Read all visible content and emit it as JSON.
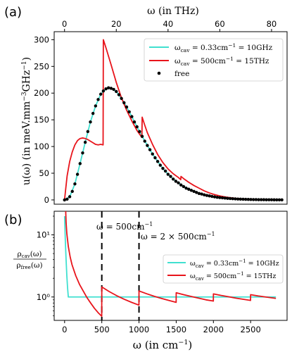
{
  "chart_data": [
    {
      "type": "line",
      "panel_label": "(a)",
      "xlabel": "ω (in THz)",
      "ylabel": "u(ω) (in meV.mm⁻³GHz⁻¹)",
      "xlim": [
        -4,
        86
      ],
      "ylim": [
        -8,
        315
      ],
      "x_ticks": [
        0,
        20,
        40,
        60,
        80
      ],
      "x_tick_labels": [
        "0",
        "20",
        "40",
        "60",
        "80"
      ],
      "y_ticks": [
        0,
        50,
        100,
        150,
        200,
        250,
        300
      ],
      "y_tick_labels": [
        "0",
        "50",
        "100",
        "150",
        "200",
        "250",
        "300"
      ],
      "x_axis_position": "top",
      "legend_position": "top-right",
      "series": [
        {
          "name": "ω_cav = 0.33cm⁻¹ = 10GHz",
          "color": "#40e0d0",
          "style": "line",
          "x": [
            0,
            2,
            4,
            6,
            8,
            10,
            12,
            14,
            16,
            18,
            20,
            22,
            24,
            26,
            28,
            30,
            32,
            34,
            36,
            38,
            40,
            42,
            44,
            46,
            48,
            50,
            52,
            54,
            56,
            58,
            60,
            62,
            64,
            66,
            68,
            70,
            72,
            74,
            76,
            78,
            80,
            82,
            84
          ],
          "y": [
            0,
            6,
            30,
            68,
            108,
            146,
            176,
            198,
            208,
            209,
            203,
            190,
            174,
            156,
            137,
            119,
            102,
            86,
            72,
            59,
            48,
            39,
            32,
            25,
            20,
            16,
            12,
            9.5,
            7.5,
            5.7,
            4.4,
            3.4,
            2.6,
            2.0,
            1.5,
            1.1,
            0.8,
            0.6,
            0.5,
            0.35,
            0.26,
            0.2,
            0.15
          ]
        },
        {
          "name": "ω_cav = 500cm⁻¹ = 15THz",
          "color": "#e8141b",
          "style": "line",
          "x": [
            0,
            1,
            2,
            3,
            4,
            5,
            6,
            7,
            8,
            9,
            10,
            11,
            12,
            13,
            14,
            14.9,
            15,
            16,
            18,
            20,
            22,
            24,
            26,
            28,
            29.9,
            30,
            31,
            32,
            34,
            36,
            38,
            40,
            42,
            44,
            44.9,
            45,
            46,
            48,
            50,
            52,
            54,
            56,
            58,
            60,
            62,
            64,
            66,
            68,
            70,
            72,
            74,
            76,
            78,
            80,
            82,
            84
          ],
          "y": [
            0,
            45,
            72,
            90,
            103,
            111,
            115,
            116,
            115,
            113,
            110,
            107,
            104,
            103,
            104,
            103,
            300,
            285,
            253,
            220,
            191,
            168,
            148,
            130,
            117,
            155,
            140,
            126,
            104,
            85,
            70,
            58,
            49,
            42,
            38,
            44,
            40,
            33,
            27,
            22,
            17,
            13,
            10,
            7.5,
            5.6,
            4.1,
            3.0,
            2.2,
            1.6,
            1.2,
            0.85,
            0.6,
            0.45,
            0.32,
            0.23,
            0.17
          ]
        },
        {
          "name": "free",
          "color": "#000000",
          "style": "markers",
          "x": [
            0,
            1,
            2,
            3,
            4,
            5,
            6,
            7,
            8,
            9,
            10,
            11,
            12,
            13,
            14,
            15,
            16,
            17,
            18,
            19,
            20,
            21,
            22,
            23,
            24,
            25,
            26,
            27,
            28,
            29,
            30,
            31,
            32,
            33,
            34,
            35,
            36,
            37,
            38,
            39,
            40,
            41,
            42,
            43,
            44,
            45,
            46,
            47,
            48,
            49,
            50,
            51,
            52,
            53,
            54,
            55,
            56,
            57,
            58,
            59,
            60,
            61,
            62,
            63,
            64,
            65,
            66,
            67,
            68,
            69,
            70,
            71,
            72,
            73,
            74,
            75,
            76,
            77,
            78,
            79,
            80,
            81,
            82,
            83,
            84
          ],
          "y": [
            0,
            1.5,
            6,
            16,
            30,
            48,
            68,
            88,
            108,
            128,
            146,
            162,
            176,
            188,
            198,
            204,
            208,
            210,
            209,
            207,
            203,
            197,
            190,
            182,
            174,
            165,
            156,
            146,
            137,
            128,
            119,
            110,
            102,
            94,
            86,
            79,
            72,
            65,
            59,
            54,
            48,
            44,
            39,
            35,
            32,
            28,
            25,
            22,
            20,
            18,
            16,
            14,
            12,
            11,
            9.5,
            8.4,
            7.5,
            6.5,
            5.7,
            5.0,
            4.4,
            3.9,
            3.4,
            3.0,
            2.6,
            2.3,
            2.0,
            1.7,
            1.5,
            1.3,
            1.1,
            0.95,
            0.8,
            0.7,
            0.6,
            0.55,
            0.5,
            0.42,
            0.35,
            0.3,
            0.26,
            0.23,
            0.2,
            0.17,
            0.15
          ]
        }
      ]
    },
    {
      "type": "line",
      "panel_label": "(b)",
      "xlabel": "ω (in cm⁻¹)",
      "ylabel_num": "ρcav(ω)",
      "ylabel_den": "ρfree(ω)",
      "y_scale": "log",
      "xlim": [
        -140,
        2990
      ],
      "ylim": [
        0.42,
        24
      ],
      "x_ticks": [
        0,
        500,
        1000,
        1500,
        2000,
        2500
      ],
      "x_tick_labels": [
        "0",
        "500",
        "1000",
        "1500",
        "2000",
        "2500"
      ],
      "y_ticks": [
        1,
        10
      ],
      "y_tick_labels": [
        "10⁰",
        "10¹"
      ],
      "legend_position": "center-right",
      "annotations": [
        {
          "text": "ω = 500cm⁻¹",
          "x": 500
        },
        {
          "text": "ω = 2 × 500cm⁻¹",
          "x": 1000
        }
      ],
      "series": [
        {
          "name": "ω_cav = 0.33cm⁻¹ = 10GHz",
          "color": "#40e0d0",
          "x": [
            0,
            10,
            20,
            30,
            40,
            50,
            2840
          ],
          "y": [
            20,
            8,
            4,
            2.2,
            1.4,
            1.0,
            1.0
          ]
        },
        {
          "name": "ω_cav = 500cm⁻¹ = 15THz",
          "color": "#e8141b",
          "x": [
            15,
            20,
            30,
            50,
            75,
            100,
            150,
            200,
            250,
            300,
            350,
            400,
            450,
            499,
            500,
            600,
            700,
            800,
            900,
            999,
            1000,
            1100,
            1200,
            1300,
            1400,
            1499,
            1500,
            1600,
            1700,
            1800,
            1900,
            1999,
            2000,
            2100,
            2200,
            2300,
            2400,
            2499,
            2500,
            2600,
            2700,
            2840
          ],
          "y": [
            24,
            16,
            10.5,
            6.5,
            4.4,
            3.3,
            2.2,
            1.6,
            1.25,
            0.98,
            0.8,
            0.66,
            0.56,
            0.49,
            1.45,
            1.22,
            1.05,
            0.92,
            0.82,
            0.74,
            1.25,
            1.13,
            1.03,
            0.95,
            0.88,
            0.82,
            1.17,
            1.09,
            1.02,
            0.96,
            0.9,
            0.86,
            1.12,
            1.06,
            1.01,
            0.96,
            0.92,
            0.88,
            1.09,
            1.04,
            1.0,
            0.95
          ]
        }
      ]
    }
  ],
  "legend_a": {
    "item1": "ω",
    "item1_sub": "cav",
    "item1_rest": " = 0.33cm",
    "item1_sup": "−1",
    "item1_tail": " = 10GHz",
    "item2": "ω",
    "item2_sub": "cav",
    "item2_rest": " = 500cm",
    "item2_sup": "−1",
    "item2_tail": " = 15THz",
    "item3": "free"
  },
  "legend_b": {
    "item1": "ω",
    "item1_sub": "cav",
    "item1_rest": " = 0.33cm",
    "item1_sup": "−1",
    "item1_tail": " = 10GHz",
    "item2": "ω",
    "item2_sub": "cav",
    "item2_rest": " = 500cm",
    "item2_sup": "−1",
    "item2_tail": " = 15THz"
  },
  "labels_a": {
    "top_axis": "ω (in THz)",
    "y_main": "u(ω) (in meV.mm",
    "y_sup1": "−3",
    "y_mid": "GHz",
    "y_sup2": "−1",
    "y_end": ")"
  },
  "labels_b": {
    "x_main": "ω (in cm",
    "x_sup": "−1",
    "x_end": ")",
    "annot1_main": "ω = 500cm",
    "annot1_sup": "−1",
    "annot2_main": "ω = 2 × 500cm",
    "annot2_sup": "−1",
    "ylab_num": "ρ",
    "ylab_num_sub": "cav",
    "ylab_num_end": "(ω)",
    "ylab_den": "ρ",
    "ylab_den_sub": "free",
    "ylab_den_end": "(ω)"
  }
}
